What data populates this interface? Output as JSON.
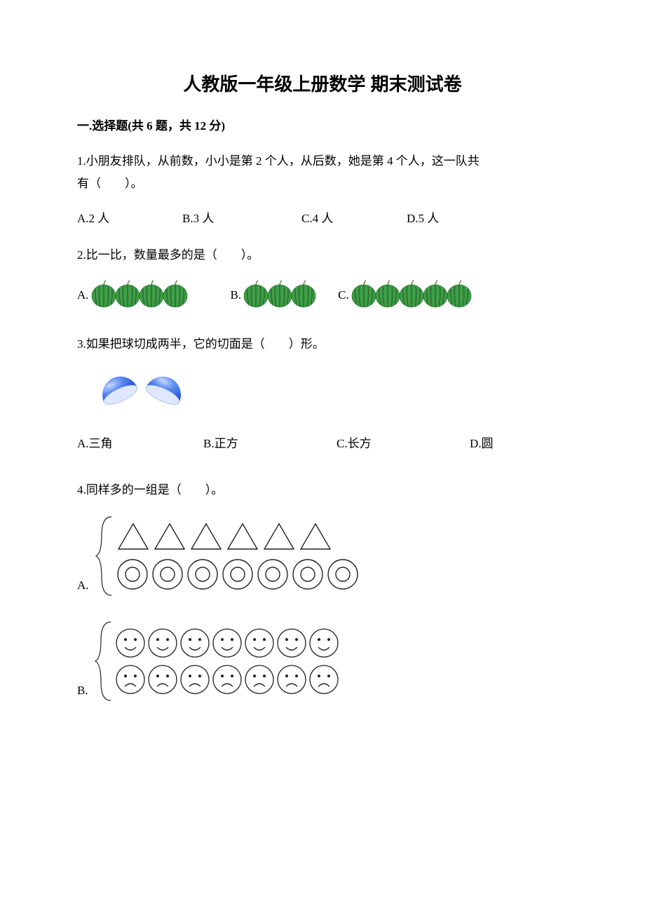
{
  "title": "人教版一年级上册数学 期末测试卷",
  "section1": {
    "heading": "一.选择题(共 6 题，共 12 分)"
  },
  "q1": {
    "text_line1": "1.小朋友排队，从前数，小小是第 2 个人，从后数，她是第 4 个人，这一队共",
    "text_line2": "有（　　）。",
    "optA": "A.2 人",
    "optB": "B.3 人",
    "optC": "C.4 人",
    "optD": "D.5 人"
  },
  "q2": {
    "text": "2.比一比，数量最多的是（　　）。",
    "labelA": "A.",
    "labelB": "B.",
    "labelC": "C.",
    "counts": {
      "A": 4,
      "B": 3,
      "C": 5
    },
    "melon": {
      "fill": "#3fa048",
      "stripe": "#2b7a33",
      "outline": "#1e5a26",
      "stem": "#5a7a3a",
      "width": 38,
      "height": 42
    }
  },
  "q3": {
    "text": "3.如果把球切成两半，它的切面是（　　）形。",
    "optA": "A.三角",
    "optB": "B.正方",
    "optC": "C.长方",
    "optD": "D.圆",
    "sphere": {
      "outer": "#1a4fd0",
      "inner": "#5a8af0",
      "highlight": "#c8d8ff",
      "face": "#dfe8ff"
    }
  },
  "q4": {
    "text": "4.同样多的一组是（　　）。",
    "labelA": "A.",
    "labelB": "B.",
    "A": {
      "triangles": 6,
      "circles": 7,
      "triangle_stroke": "#222222",
      "circle_stroke": "#222222"
    },
    "B": {
      "smiles": 7,
      "frowns": 7,
      "stroke": "#222222"
    },
    "brace_stroke": "#222222"
  },
  "colors": {
    "text": "#000000",
    "background": "#ffffff"
  }
}
